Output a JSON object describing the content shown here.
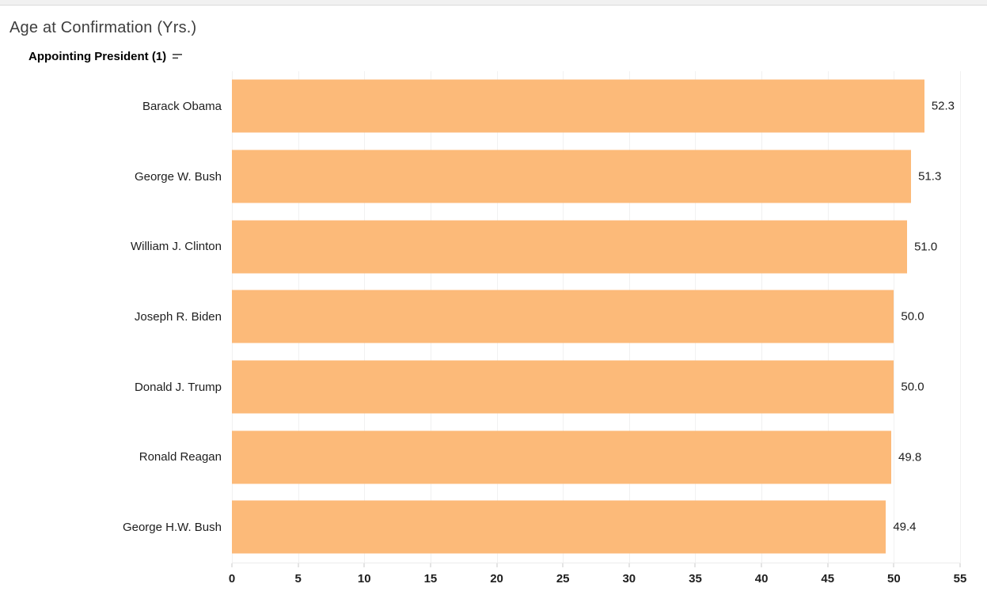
{
  "header": {
    "title": "Age at Confirmation (Yrs.)",
    "field_label": "Appointing President (1)",
    "sort_icon": "sort-descending-icon",
    "sort_state": "descending"
  },
  "chart_data": {
    "type": "bar",
    "orientation": "horizontal",
    "title": "Age at Confirmation (Yrs.)",
    "row_field": "Appointing President (1)",
    "categories": [
      "Barack Obama",
      "George W. Bush",
      "William J. Clinton",
      "Joseph R. Biden",
      "Donald J. Trump",
      "Ronald Reagan",
      "George H.W. Bush"
    ],
    "values": [
      52.3,
      51.3,
      51.0,
      50.0,
      50.0,
      49.8,
      49.4
    ],
    "value_labels": [
      "52.3",
      "51.3",
      "51.0",
      "50.0",
      "50.0",
      "49.8",
      "49.4"
    ],
    "xlabel": "",
    "ylabel": "",
    "xlim": [
      0,
      55
    ],
    "x_ticks": [
      0,
      5,
      10,
      15,
      20,
      25,
      30,
      35,
      40,
      45,
      50,
      55
    ],
    "x_tick_labels": [
      "0",
      "5",
      "10",
      "15",
      "20",
      "25",
      "30",
      "35",
      "40",
      "45",
      "50",
      "55"
    ],
    "grid": true,
    "legend": "none",
    "bar_color": "#FCBA79"
  },
  "colors": {
    "bar": "#FCBA79",
    "gridline": "#F1F1F1",
    "axis_line": "#ECECEC",
    "tick": "#C8C8C8",
    "label_text": "#1E1E1E",
    "title_text": "#3E3E3E",
    "header_text": "#000000",
    "top_strip": "#F1F1F1"
  }
}
